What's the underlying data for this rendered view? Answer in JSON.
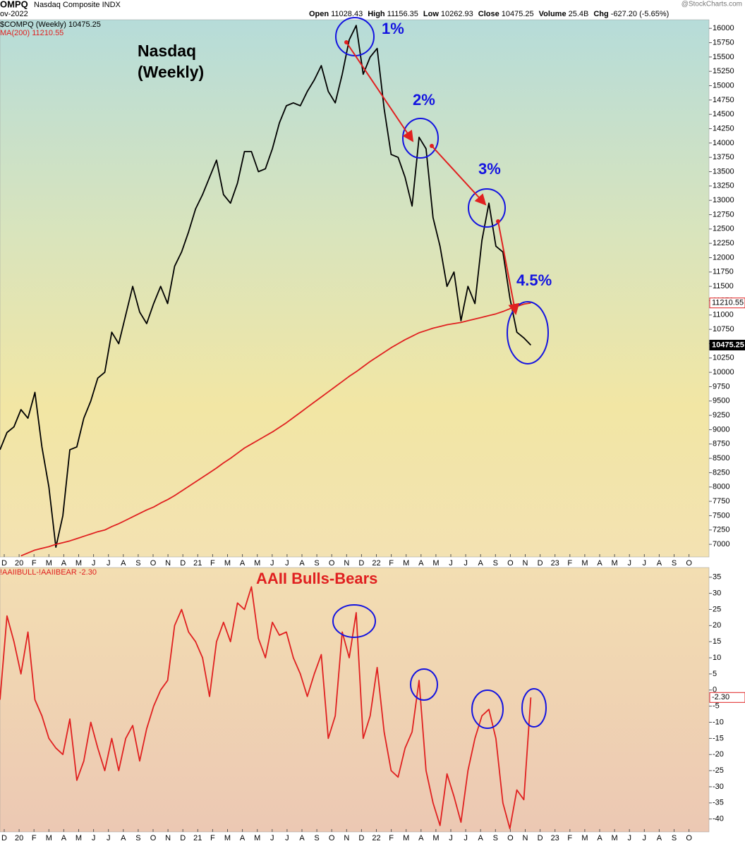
{
  "header": {
    "symbol": "OMPQ",
    "name": "Nasdaq Composite INDX",
    "date": "ov-2022",
    "source": "@StockCharts.com",
    "quote": [
      {
        "label": "Open",
        "value": "11028.43"
      },
      {
        "label": "High",
        "value": "11156.35"
      },
      {
        "label": "Low",
        "value": "10262.93"
      },
      {
        "label": "Close",
        "value": "10475.25"
      },
      {
        "label": "Volume",
        "value": "25.4B"
      },
      {
        "label": "Chg",
        "value": "-627.20 (-5.65%)"
      }
    ]
  },
  "chart_data": [
    {
      "type": "line",
      "title": "Nasdaq (Weekly)",
      "annotations": [
        "1%",
        "2%",
        "3%",
        "4.5%"
      ],
      "xtick_labels": [
        "D",
        "20",
        "F",
        "M",
        "A",
        "M",
        "J",
        "J",
        "A",
        "S",
        "O",
        "N",
        "D",
        "21",
        "F",
        "M",
        "A",
        "M",
        "J",
        "J",
        "A",
        "S",
        "O",
        "N",
        "D",
        "22",
        "F",
        "M",
        "A",
        "M",
        "J",
        "J",
        "A",
        "S",
        "O",
        "N",
        "D",
        "23",
        "F",
        "M",
        "A",
        "M",
        "J",
        "J",
        "A",
        "S",
        "O"
      ],
      "ylim": [
        6780,
        16150
      ],
      "yticks": [
        7000,
        7250,
        7500,
        7750,
        8000,
        8250,
        8500,
        8750,
        9000,
        9250,
        9500,
        9750,
        10000,
        10250,
        10500,
        10750,
        11000,
        11250,
        11500,
        11750,
        12000,
        12250,
        12500,
        12750,
        13000,
        13250,
        13500,
        13750,
        14000,
        14250,
        14500,
        14750,
        15000,
        15250,
        15500,
        15750,
        16000
      ],
      "grid": false,
      "series": [
        {
          "name": "$COMPQ (Weekly) 10475.25",
          "color": "#000000",
          "values": [
            8650,
            8950,
            9050,
            9350,
            9200,
            9650,
            8700,
            8000,
            6950,
            7500,
            8650,
            8700,
            9200,
            9500,
            9900,
            10000,
            10700,
            10500,
            11000,
            11500,
            11050,
            10850,
            11200,
            11500,
            11200,
            11850,
            12100,
            12450,
            12850,
            13100,
            13400,
            13700,
            13100,
            12950,
            13300,
            13850,
            13850,
            13500,
            13550,
            13900,
            14350,
            14650,
            14700,
            14650,
            14900,
            15100,
            15350,
            14900,
            14700,
            15200,
            15800,
            16050,
            15200,
            15500,
            15650,
            14600,
            13800,
            13750,
            13400,
            12900,
            14100,
            13900,
            12700,
            12200,
            11500,
            11750,
            10900,
            11500,
            11200,
            12300,
            12950,
            12200,
            12100,
            11300,
            10700,
            10600,
            10475
          ]
        },
        {
          "name": "MA(200) 11210.55",
          "color": "#e02020",
          "values": [
            null,
            null,
            null,
            6800,
            6850,
            6900,
            6930,
            6960,
            7000,
            7030,
            7060,
            7100,
            7140,
            7180,
            7220,
            7250,
            7310,
            7360,
            7420,
            7480,
            7540,
            7600,
            7650,
            7720,
            7780,
            7850,
            7930,
            8010,
            8090,
            8170,
            8250,
            8330,
            8420,
            8500,
            8590,
            8680,
            8750,
            8820,
            8890,
            8960,
            9040,
            9120,
            9210,
            9300,
            9390,
            9480,
            9570,
            9660,
            9750,
            9840,
            9930,
            10010,
            10100,
            10190,
            10270,
            10350,
            10430,
            10500,
            10570,
            10630,
            10690,
            10730,
            10770,
            10800,
            10830,
            10850,
            10870,
            10900,
            10930,
            10960,
            10990,
            11020,
            11060,
            11110,
            11150,
            11190,
            11210
          ]
        }
      ],
      "last_value_tags": [
        11210.55,
        10475.25
      ]
    },
    {
      "type": "line",
      "title": "AAII Bulls-Bears",
      "xtick_labels": [
        "D",
        "20",
        "F",
        "M",
        "A",
        "M",
        "J",
        "J",
        "A",
        "S",
        "O",
        "N",
        "D",
        "21",
        "F",
        "M",
        "A",
        "M",
        "J",
        "J",
        "A",
        "S",
        "O",
        "N",
        "D",
        "22",
        "F",
        "M",
        "A",
        "M",
        "J",
        "J",
        "A",
        "S",
        "O",
        "N",
        "D",
        "23",
        "F",
        "M",
        "A",
        "M",
        "J",
        "J",
        "A",
        "S",
        "O"
      ],
      "ylim": [
        -44,
        38
      ],
      "yticks": [
        -40,
        -35,
        -30,
        -25,
        -20,
        -15,
        -10,
        -5,
        0,
        5,
        10,
        15,
        20,
        25,
        30,
        35
      ],
      "grid": false,
      "series": [
        {
          "name": "!AAIIBULL-!AAIIBEAR -2.30",
          "color": "#e02020",
          "values": [
            -3,
            23,
            15,
            5,
            18,
            -3,
            -8,
            -15,
            -18,
            -20,
            -9,
            -28,
            -22,
            -10,
            -18,
            -25,
            -15,
            -25,
            -15,
            -11,
            -22,
            -12,
            -5,
            0,
            3,
            20,
            25,
            18,
            15,
            10,
            -2,
            15,
            21,
            15,
            27,
            25,
            32,
            16,
            10,
            21,
            17,
            18,
            10,
            5,
            -2,
            5,
            11,
            -15,
            -8,
            18,
            10,
            24,
            -15,
            -8,
            7,
            -13,
            -25,
            -27,
            -18,
            -13,
            3,
            -25,
            -35,
            -42,
            -26,
            -33,
            -41,
            -25,
            -15,
            -8,
            -6,
            -15,
            -35,
            -43,
            -31,
            -34,
            -2.3
          ]
        }
      ],
      "last_value_tags": [
        {
          "value": -2.3,
          "label": "-2.30"
        }
      ]
    }
  ]
}
